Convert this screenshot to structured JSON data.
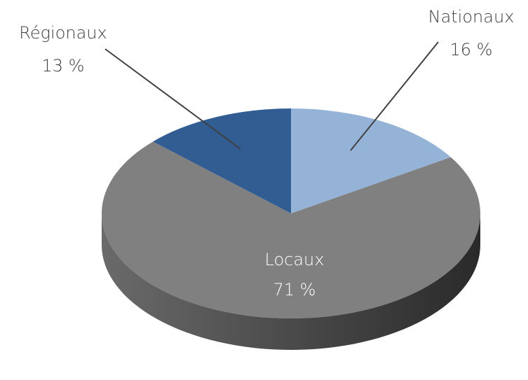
{
  "chart_data": {
    "type": "pie",
    "categories": [
      "Nationaux",
      "Locaux",
      "Régionaux"
    ],
    "values": [
      16,
      71,
      13
    ],
    "value_labels": [
      "16 %",
      "71 %",
      "13 %"
    ],
    "colors": [
      "#95b3d7",
      "#808080",
      "#325d93"
    ]
  }
}
